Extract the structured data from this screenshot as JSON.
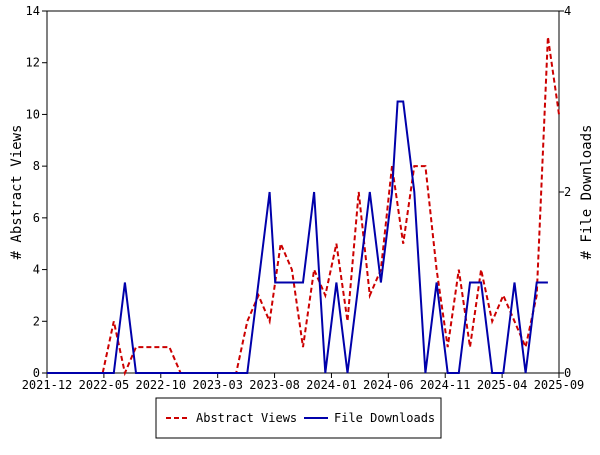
{
  "chart_data": {
    "type": "line",
    "title": "",
    "xlabel": "",
    "ylabel_left": "# Abstract Views",
    "ylabel_right": "# File Downloads",
    "x_ticks": [
      "2021-12",
      "2022-05",
      "2022-10",
      "2023-03",
      "2023-08",
      "2024-01",
      "2024-06",
      "2024-11",
      "2025-04",
      "2025-09"
    ],
    "y_left_ticks": [
      "0",
      "2",
      "4",
      "6",
      "8",
      "10",
      "12",
      "14"
    ],
    "y_right_ticks": [
      "0",
      "2",
      "4"
    ],
    "ylim_left": [
      0,
      14
    ],
    "ylim_right": [
      0,
      4
    ],
    "xlim": [
      0,
      45
    ],
    "legend_position": "bottom-center",
    "grid": false,
    "series": [
      {
        "name": "Abstract Views",
        "axis": "left",
        "color": "#cc0000",
        "style": "dashed",
        "points": [
          [
            0,
            0
          ],
          [
            1,
            0
          ],
          [
            2,
            0
          ],
          [
            3,
            0
          ],
          [
            4,
            0
          ],
          [
            5,
            0
          ],
          [
            6,
            2
          ],
          [
            7,
            0
          ],
          [
            8,
            1
          ],
          [
            9,
            1
          ],
          [
            10,
            1
          ],
          [
            11,
            1
          ],
          [
            12,
            0
          ],
          [
            13,
            0
          ],
          [
            14,
            0
          ],
          [
            15,
            0
          ],
          [
            16,
            0
          ],
          [
            17,
            0
          ],
          [
            18,
            2
          ],
          [
            19,
            3
          ],
          [
            20,
            2
          ],
          [
            21,
            5
          ],
          [
            22,
            4
          ],
          [
            23,
            1
          ],
          [
            24,
            4
          ],
          [
            25,
            3
          ],
          [
            26,
            5
          ],
          [
            27,
            2
          ],
          [
            28,
            7
          ],
          [
            29,
            3
          ],
          [
            30,
            4
          ],
          [
            31,
            8
          ],
          [
            32,
            5
          ],
          [
            33,
            8
          ],
          [
            34,
            8
          ],
          [
            35,
            4
          ],
          [
            36,
            1
          ],
          [
            37,
            4
          ],
          [
            38,
            1
          ],
          [
            39,
            4
          ],
          [
            40,
            2
          ],
          [
            41,
            3
          ],
          [
            42,
            2
          ],
          [
            43,
            1
          ],
          [
            44,
            3
          ],
          [
            45,
            13
          ],
          [
            46,
            10
          ]
        ]
      },
      {
        "name": "File Downloads",
        "axis": "right",
        "color": "#0000aa",
        "style": "solid",
        "points": [
          [
            0,
            0
          ],
          [
            1,
            0
          ],
          [
            2,
            0
          ],
          [
            3,
            0
          ],
          [
            4,
            0
          ],
          [
            5,
            0
          ],
          [
            6,
            0
          ],
          [
            7,
            1
          ],
          [
            8,
            0
          ],
          [
            9,
            0
          ],
          [
            10,
            0
          ],
          [
            11,
            0
          ],
          [
            12,
            0
          ],
          [
            13,
            0
          ],
          [
            14,
            0
          ],
          [
            15,
            0
          ],
          [
            16,
            0
          ],
          [
            17,
            0
          ],
          [
            18,
            0
          ],
          [
            19,
            1
          ],
          [
            20,
            2
          ],
          [
            20.5,
            1
          ],
          [
            21,
            1
          ],
          [
            22,
            1
          ],
          [
            23,
            1
          ],
          [
            24,
            2
          ],
          [
            25,
            0
          ],
          [
            26,
            1
          ],
          [
            27,
            0
          ],
          [
            28,
            1
          ],
          [
            29,
            2
          ],
          [
            30,
            1
          ],
          [
            31,
            2
          ],
          [
            31.5,
            3
          ],
          [
            32,
            3
          ],
          [
            33,
            2
          ],
          [
            34,
            0
          ],
          [
            35,
            1
          ],
          [
            36,
            0
          ],
          [
            37,
            0
          ],
          [
            38,
            1
          ],
          [
            39,
            1
          ],
          [
            40,
            0
          ],
          [
            41,
            0
          ],
          [
            42,
            1
          ],
          [
            43,
            0
          ],
          [
            44,
            1
          ],
          [
            45,
            1
          ]
        ]
      }
    ]
  }
}
